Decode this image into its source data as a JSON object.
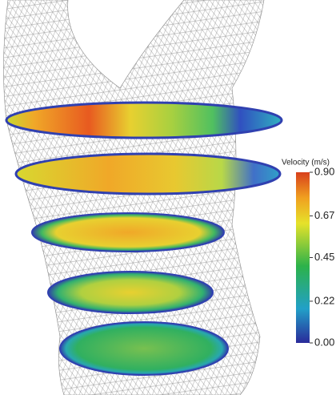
{
  "colorbar": {
    "title": "Velocity (m/s)",
    "range": [
      0,
      0.9
    ],
    "ticks": [
      {
        "value": 0.9,
        "label": "0.90"
      },
      0.67,
      0.45,
      0.22,
      {
        "value": 0,
        "label": "0.00"
      }
    ]
  }
}
